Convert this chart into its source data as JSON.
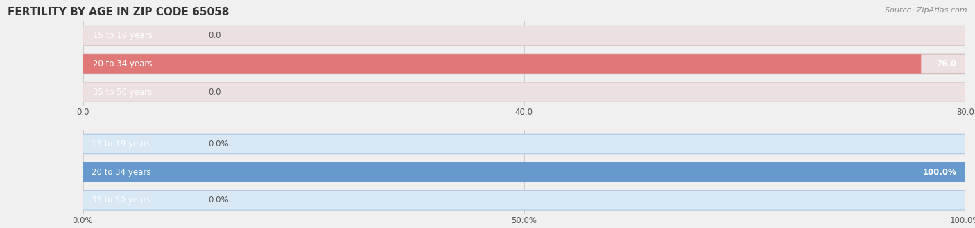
{
  "title": "FERTILITY BY AGE IN ZIP CODE 65058",
  "source": "Source: ZipAtlas.com",
  "top_chart": {
    "categories": [
      "15 to 19 years",
      "20 to 34 years",
      "35 to 50 years"
    ],
    "values": [
      0.0,
      76.0,
      0.0
    ],
    "bar_color": "#e07878",
    "bar_bg_color": "#ede0e0",
    "bar_edge_color": "#d4b8b8",
    "xlim": [
      0,
      80.0
    ],
    "xticks": [
      0.0,
      40.0,
      80.0
    ],
    "xtick_labels": [
      "0.0",
      "40.0",
      "80.0"
    ],
    "value_labels": [
      "0.0",
      "76.0",
      "0.0"
    ]
  },
  "bottom_chart": {
    "categories": [
      "15 to 19 years",
      "20 to 34 years",
      "35 to 50 years"
    ],
    "values": [
      0.0,
      100.0,
      0.0
    ],
    "bar_color": "#6699cc",
    "bar_bg_color": "#d8e8f5",
    "bar_edge_color": "#b0c8e0",
    "xlim": [
      0,
      100.0
    ],
    "xticks": [
      0.0,
      50.0,
      100.0
    ],
    "xtick_labels": [
      "0.0%",
      "50.0%",
      "100.0%"
    ],
    "value_labels": [
      "0.0%",
      "100.0%",
      "0.0%"
    ]
  },
  "fig_bg_color": "#f0f0f0",
  "chart_bg_color": "#f0f0f0",
  "bar_height": 0.7,
  "label_fontsize": 8.5,
  "tick_fontsize": 8.5,
  "title_fontsize": 11,
  "label_color_inside": "#ffffff",
  "label_color_outside": "#555555",
  "value_color_inside": "#ffffff",
  "value_color_outside": "#555555",
  "title_color": "#333333",
  "source_color": "#888888",
  "grid_color": "#cccccc"
}
